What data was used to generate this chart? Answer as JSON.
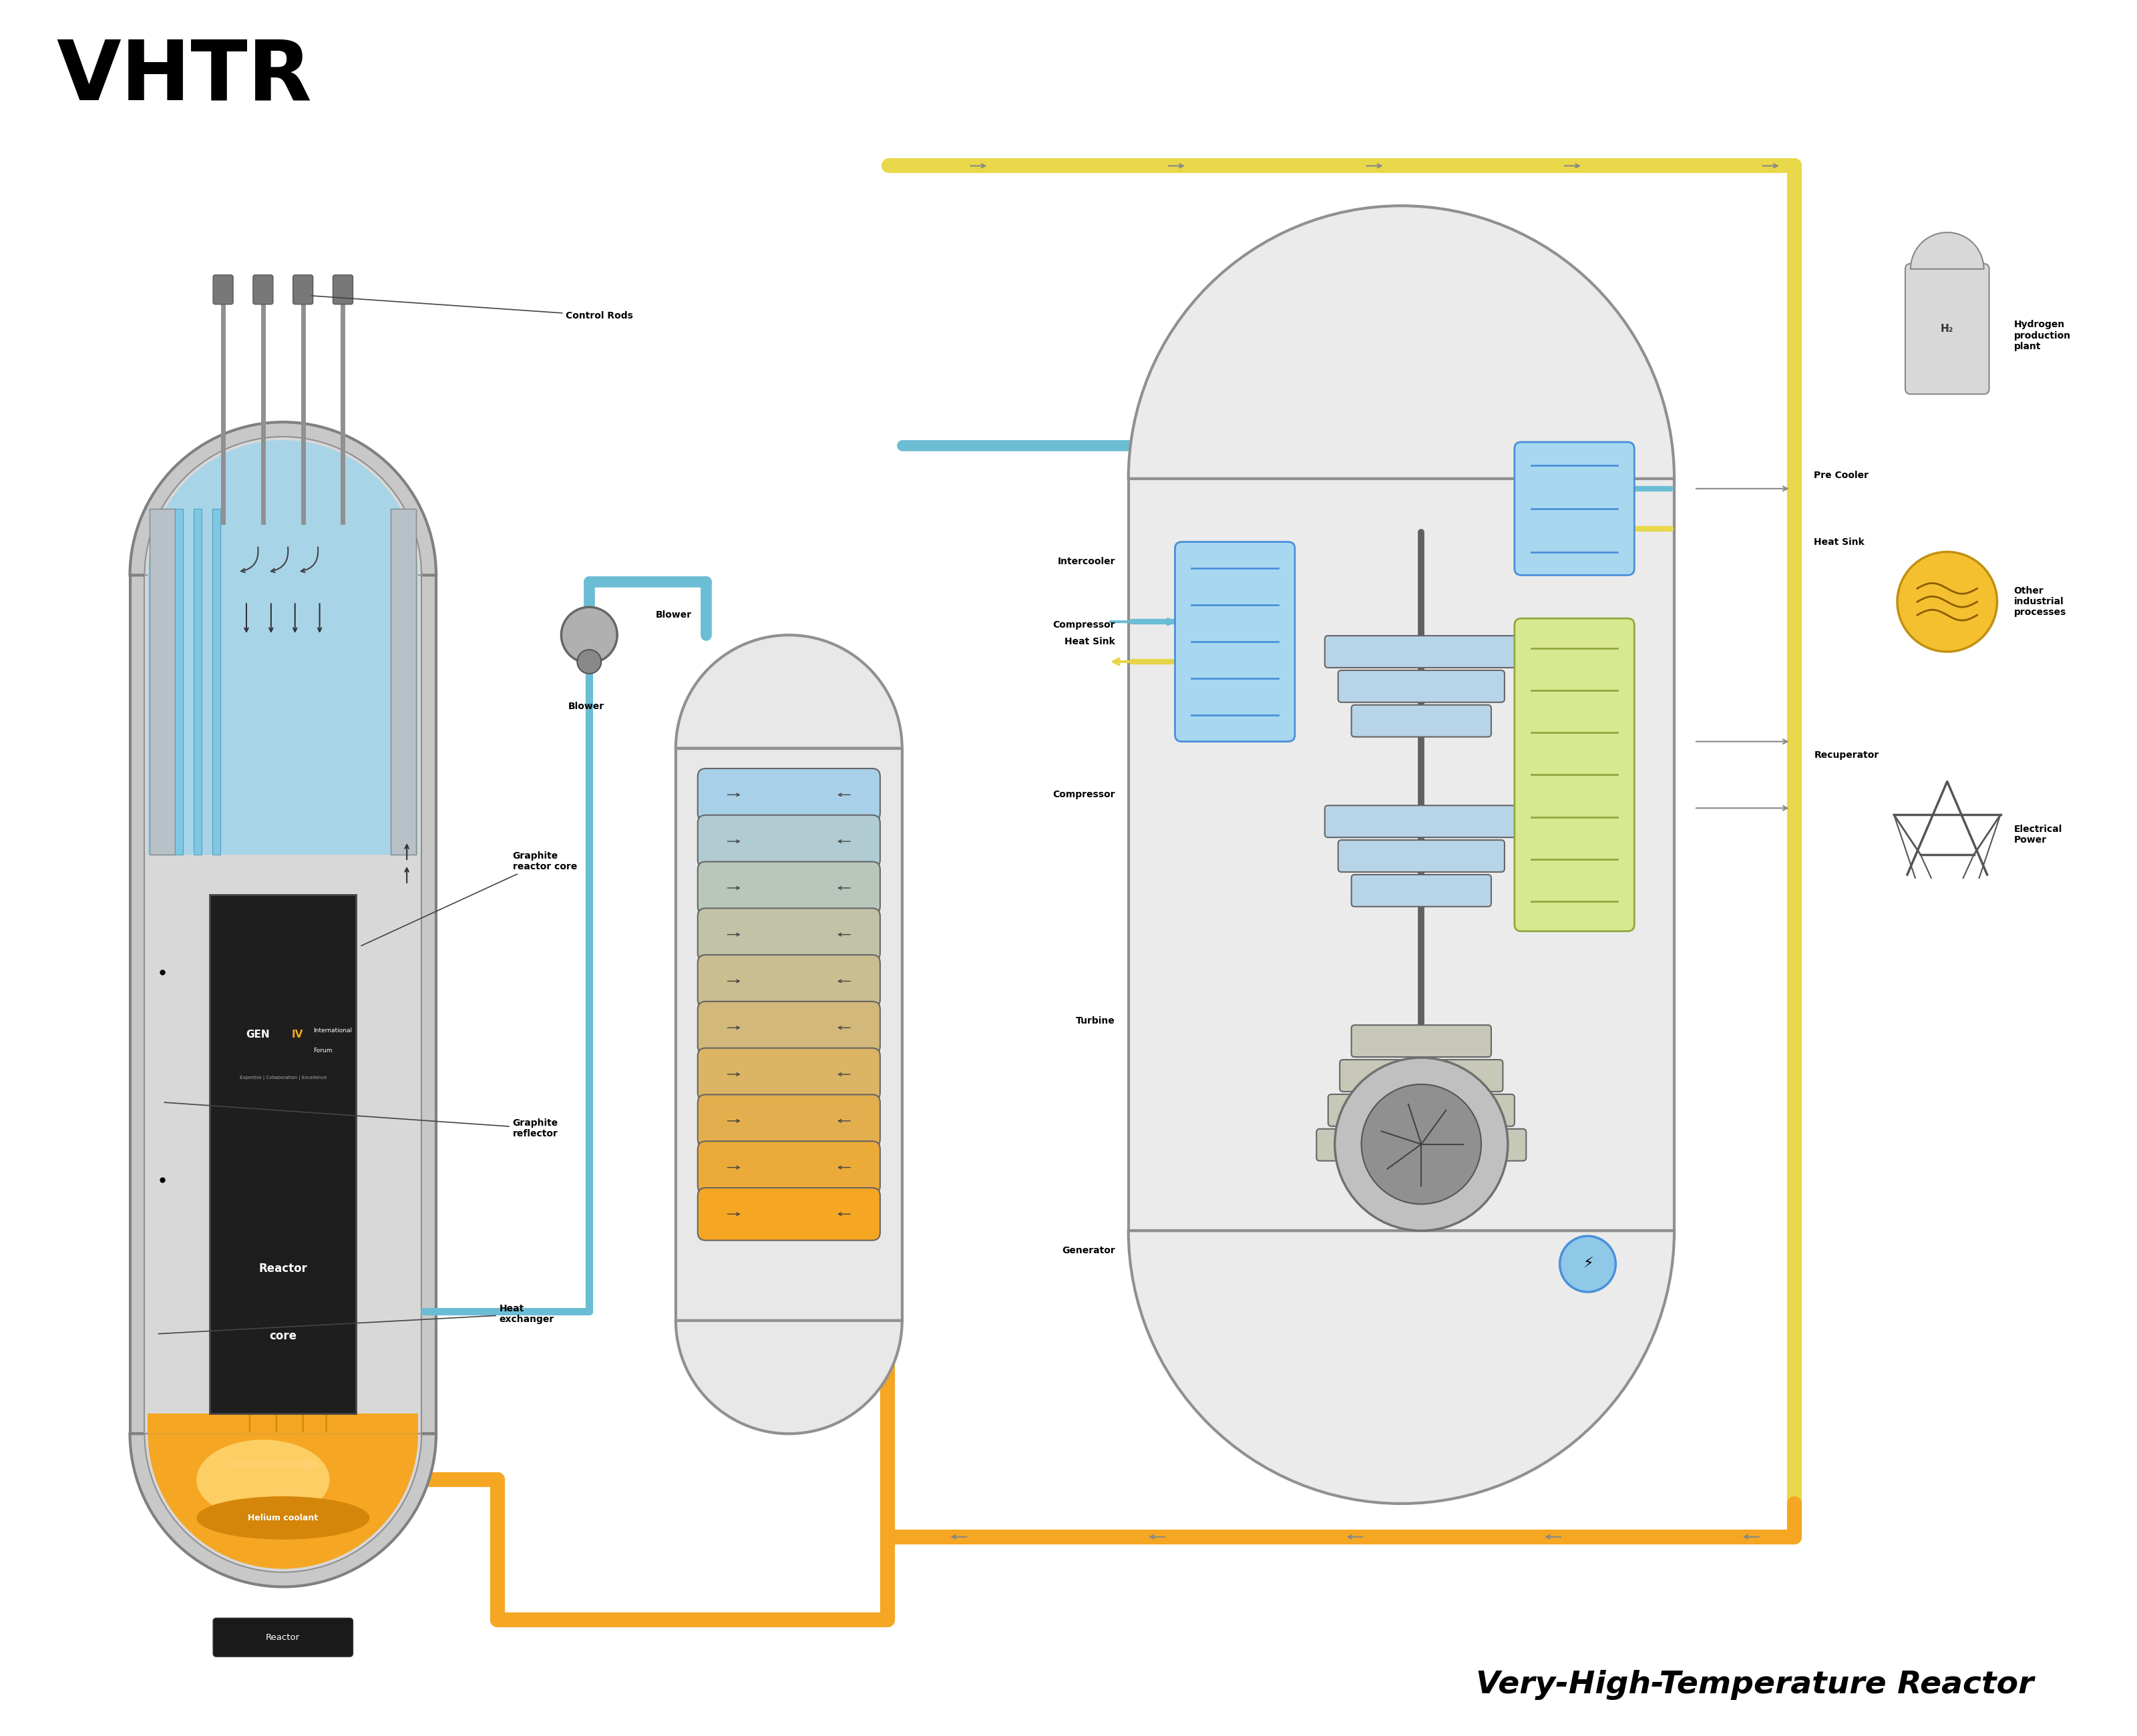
{
  "title_abbrev": "VHTR",
  "title_full": "Very-High-Temperature Reactor",
  "background_color": "#ffffff",
  "labels": {
    "control_rods": "Control Rods",
    "graphite_reactor_core": "Graphite\nreactor core",
    "graphite_reflector": "Graphite\nreflector",
    "heat_exchanger": "Heat\nexchanger",
    "blower_top": "Blower",
    "blower_bottom": "Blower",
    "helium_coolant": "Helium coolant",
    "reactor_core": "Reactor\ncore",
    "reactor_label": "Reactor",
    "compressor_top": "Compressor",
    "intercooler": "Intercooler",
    "heat_sink_left": "Heat Sink",
    "heat_sink_right": "Heat Sink",
    "pre_cooler": "Pre Cooler",
    "recuperator": "Recuperator",
    "compressor_mid": "Compressor",
    "turbine": "Turbine",
    "generator": "Generator",
    "hydrogen": "Hydrogen\nproduction\nplant",
    "h2": "H₂",
    "other_industrial": "Other\nindustrial\nprocesses",
    "electrical_power": "Electrical\nPower"
  },
  "colors": {
    "orange": "#F5A623",
    "orange_dark": "#E07B00",
    "blue_light": "#7EC8E3",
    "blue_pale": "#B8D4E8",
    "blue_line": "#4A90D9",
    "gray_dark": "#4A4A4A",
    "gray_med": "#888888",
    "gray_light": "#CCCCCC",
    "gray_vessel": "#B0B0B0",
    "yellow_green": "#D4E157",
    "yellow": "#FFF176",
    "green_light": "#C8E6C9",
    "reactor_core_bg": "#2A2A2A",
    "white": "#FFFFFF",
    "black": "#000000",
    "gen4_orange": "#F5A623",
    "gen4_text": "#FFFFFF"
  }
}
